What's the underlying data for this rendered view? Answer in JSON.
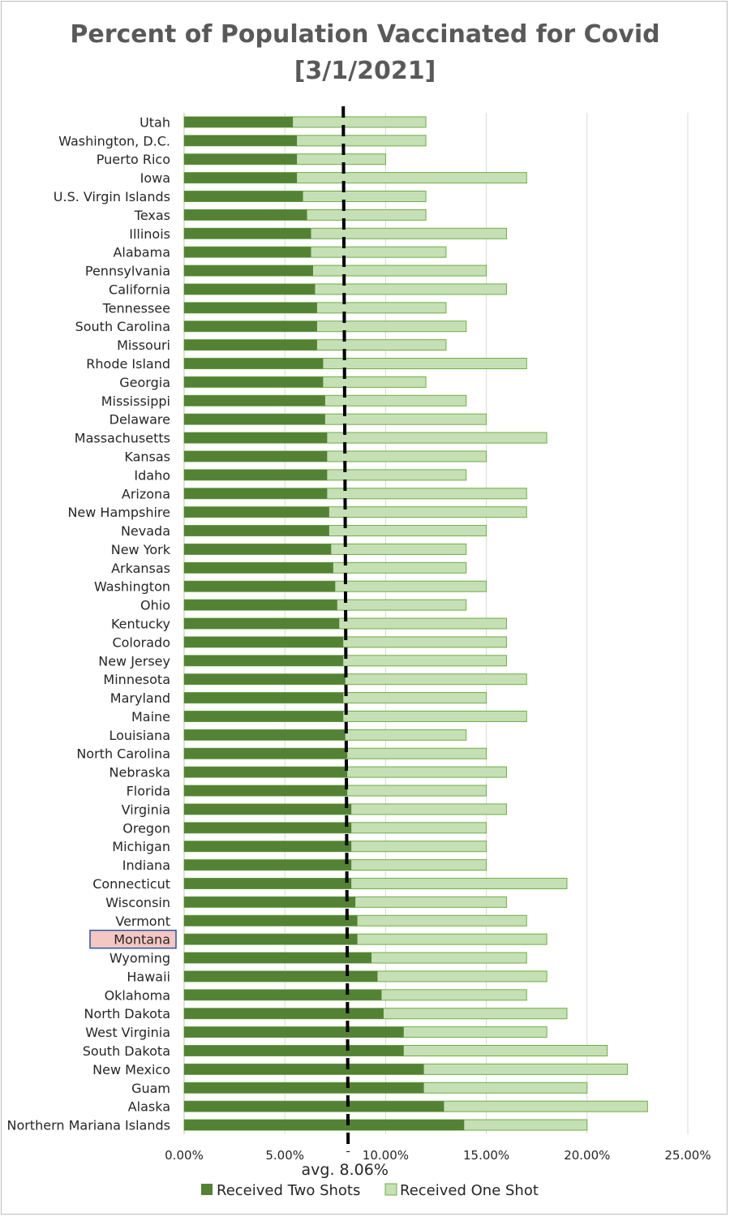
{
  "chart_data": {
    "type": "bar",
    "orientation": "horizontal",
    "stacked": false,
    "title": "Percent of Population Vaccinated for Covid",
    "subtitle": "[3/1/2021]",
    "categories": [
      "Utah",
      "Washington, D.C.",
      "Puerto Rico",
      "Iowa",
      "U.S. Virgin Islands",
      "Texas",
      "Illinois",
      "Alabama",
      "Pennsylvania",
      "California",
      "Tennessee",
      "South Carolina",
      "Missouri",
      "Rhode Island",
      "Georgia",
      "Mississippi",
      "Delaware",
      "Massachusetts",
      "Kansas",
      "Idaho",
      "Arizona",
      "New Hampshire",
      "Nevada",
      "New York",
      "Arkansas",
      "Washington",
      "Ohio",
      "Kentucky",
      "Colorado",
      "New Jersey",
      "Minnesota",
      "Maryland",
      "Maine",
      "Louisiana",
      "North Carolina",
      "Nebraska",
      "Florida",
      "Virginia",
      "Oregon",
      "Michigan",
      "Indiana",
      "Connecticut",
      "Wisconsin",
      "Vermont",
      "Montana",
      "Wyoming",
      "Hawaii",
      "Oklahoma",
      "North Dakota",
      "West Virginia",
      "South Dakota",
      "New Mexico",
      "Guam",
      "Alaska",
      "Northern Mariana Islands"
    ],
    "series": [
      {
        "name": "Received Two Shots",
        "color": "#548235",
        "values": [
          5.4,
          5.6,
          5.6,
          5.6,
          5.9,
          6.1,
          6.3,
          6.3,
          6.4,
          6.5,
          6.6,
          6.6,
          6.6,
          6.9,
          6.9,
          7.0,
          7.0,
          7.1,
          7.1,
          7.1,
          7.1,
          7.2,
          7.2,
          7.3,
          7.4,
          7.5,
          7.6,
          7.7,
          7.9,
          7.9,
          8.0,
          7.9,
          7.9,
          8.0,
          8.1,
          8.1,
          8.1,
          8.3,
          8.3,
          8.3,
          8.3,
          8.3,
          8.5,
          8.6,
          8.6,
          9.3,
          9.6,
          9.8,
          9.9,
          10.9,
          10.9,
          11.9,
          11.9,
          12.9,
          13.9
        ]
      },
      {
        "name": "Received One Shot",
        "color": "#c5e0b4",
        "border": "#70ad47",
        "values": [
          12,
          12,
          10,
          17,
          12,
          12,
          16,
          13,
          15,
          16,
          13,
          14,
          13,
          17,
          12,
          14,
          15,
          18,
          15,
          14,
          17,
          17,
          15,
          14,
          14,
          15,
          14,
          16,
          16,
          16,
          17,
          15,
          17,
          14,
          15,
          16,
          15,
          16,
          15,
          15,
          15,
          19,
          16,
          17,
          18,
          17,
          18,
          17,
          19,
          18,
          21,
          22,
          20,
          23,
          20
        ]
      }
    ],
    "xlim": [
      0,
      25
    ],
    "xticks": [
      "0.00%",
      "5.00%",
      "10.00%",
      "15.00%",
      "20.00%",
      "25.00%"
    ],
    "average": {
      "value": 8.06,
      "label": "avg. 8.06%"
    },
    "highlight": {
      "category": "Montana",
      "color": "#f4c7c3",
      "border": "#2f5597"
    },
    "grid": true,
    "legend_position": "bottom"
  }
}
